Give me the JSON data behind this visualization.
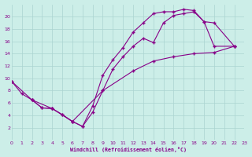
{
  "background_color": "#cceee8",
  "grid_color": "#aad4d0",
  "line_color": "#880088",
  "xlabel": "Windchill (Refroidissement éolien,°C)",
  "xlim": [
    0,
    23
  ],
  "ylim": [
    0,
    22
  ],
  "xticks": [
    0,
    1,
    2,
    3,
    4,
    5,
    6,
    7,
    8,
    9,
    10,
    11,
    12,
    13,
    14,
    15,
    16,
    17,
    18,
    19,
    20,
    21,
    22,
    23
  ],
  "yticks": [
    2,
    4,
    6,
    8,
    10,
    12,
    14,
    16,
    18,
    20
  ],
  "curve1_x": [
    0,
    1,
    2,
    3,
    4,
    5,
    6,
    7,
    8,
    9,
    10,
    11,
    12,
    13,
    14,
    15,
    16,
    17,
    18,
    19,
    20,
    22
  ],
  "curve1_y": [
    9.5,
    7.5,
    6.5,
    5.2,
    5.1,
    4.1,
    3.0,
    2.2,
    4.5,
    8.0,
    11.5,
    13.5,
    15.2,
    16.5,
    15.8,
    19.0,
    20.2,
    20.5,
    20.8,
    19.2,
    19.0,
    15.2
  ],
  "curve2_x": [
    0,
    2,
    3,
    4,
    5,
    6,
    7,
    8,
    9,
    10,
    11,
    12,
    13,
    14,
    15,
    16,
    17,
    18,
    19,
    20,
    22
  ],
  "curve2_y": [
    9.5,
    6.5,
    5.2,
    5.1,
    4.1,
    3.0,
    2.2,
    5.5,
    10.5,
    13.0,
    15.0,
    17.5,
    19.0,
    20.5,
    20.8,
    20.8,
    21.2,
    21.0,
    19.2,
    15.2,
    15.2
  ],
  "curve3_x": [
    2,
    4,
    6,
    9,
    12,
    14,
    16,
    18,
    20,
    22
  ],
  "curve3_y": [
    6.5,
    5.1,
    3.0,
    8.0,
    11.2,
    12.8,
    13.5,
    14.0,
    14.2,
    15.2
  ]
}
